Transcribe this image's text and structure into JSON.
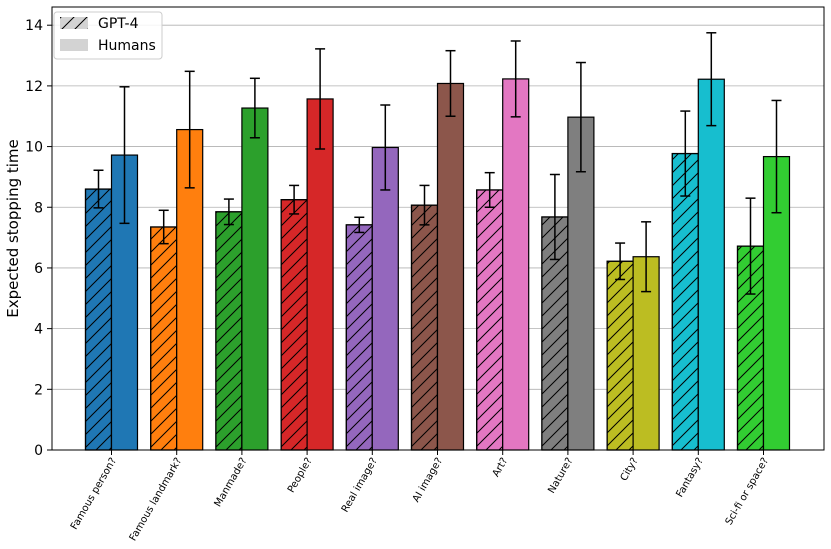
{
  "chart_data": {
    "type": "bar",
    "ylabel": "Expected stopping time",
    "xlabel": "",
    "ylim": [
      0,
      14.6
    ],
    "yticks": [
      0,
      2,
      4,
      6,
      8,
      10,
      12,
      14
    ],
    "grid": "y",
    "legend_position": "top-left",
    "legend": [
      {
        "name": "GPT-4",
        "style": "hatched"
      },
      {
        "name": "Humans",
        "style": "solid"
      }
    ],
    "categories": [
      "Famous person?",
      "Famous landmark?",
      "Manmade?",
      "People?",
      "Real image?",
      "AI image?",
      "Art?",
      "Nature?",
      "City?",
      "Fantasy?",
      "Sci-fi or space?"
    ],
    "colors": [
      "#1f77b4",
      "#ff7f0e",
      "#2ca02c",
      "#d62728",
      "#9467bd",
      "#8c564b",
      "#e377c2",
      "#7f7f7f",
      "#bcbd22",
      "#17becf",
      "#32cd32"
    ],
    "series": [
      {
        "name": "GPT-4",
        "values": [
          8.6,
          7.35,
          7.85,
          8.25,
          7.42,
          8.07,
          8.57,
          7.68,
          6.22,
          9.77,
          6.72
        ],
        "error": [
          0.62,
          0.55,
          0.42,
          0.47,
          0.25,
          0.65,
          0.57,
          1.4,
          0.6,
          1.4,
          1.58
        ]
      },
      {
        "name": "Humans",
        "values": [
          9.72,
          10.56,
          11.27,
          11.57,
          9.97,
          12.08,
          12.23,
          10.97,
          6.37,
          12.22,
          9.67
        ],
        "error": [
          2.25,
          1.92,
          0.98,
          1.65,
          1.4,
          1.08,
          1.25,
          1.8,
          1.15,
          1.53,
          1.85
        ]
      }
    ]
  }
}
